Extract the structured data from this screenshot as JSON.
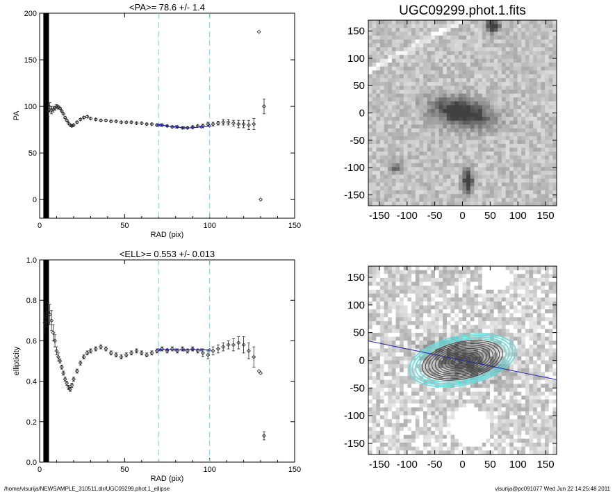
{
  "footer": {
    "left": "/home/visurija/NEWSAMPLE_310511.dir/UGC09299.phot.1_ellipse",
    "right": "visurija@pc091077  Wed Jun 22 14:25:48 2011"
  },
  "colors": {
    "points": "#222222",
    "fit": "#2222aa",
    "marker": "#66dddd",
    "axis": "#000000"
  },
  "chart_data": [
    {
      "type": "scatter",
      "title": "<PA>=  78.6 +/-   1.4",
      "xlabel": "RAD (pix)",
      "ylabel": "PA",
      "xlim": [
        0,
        150
      ],
      "ylim": [
        -20,
        200
      ],
      "xticks": [
        "0",
        "50",
        "100",
        "150"
      ],
      "yticks": [
        "0",
        "50",
        "100",
        "150",
        "200"
      ],
      "ytick_values": [
        0,
        50,
        100,
        150,
        200
      ],
      "reference_lines_x": [
        70,
        100
      ],
      "series": [
        {
          "x": [
            5,
            6,
            7,
            8,
            9,
            10,
            11,
            12,
            13,
            14,
            15,
            16,
            17,
            18,
            19,
            20,
            22,
            24,
            26,
            28,
            30,
            33,
            36,
            39,
            42,
            45,
            48,
            51,
            54,
            57,
            60,
            63,
            66,
            69,
            72,
            75,
            78,
            81,
            84,
            87,
            90,
            93,
            96,
            99,
            102,
            105,
            108,
            111,
            114,
            117,
            120,
            123,
            126,
            129,
            130,
            132
          ],
          "y": [
            95,
            99,
            96,
            97,
            98,
            100,
            99,
            98,
            95,
            92,
            88,
            85,
            82,
            80,
            79,
            80,
            83,
            86,
            88,
            89,
            87,
            86,
            85,
            85,
            84,
            84,
            83,
            83,
            83,
            82,
            82,
            81,
            81,
            80,
            80,
            79,
            78,
            78,
            77,
            77,
            78,
            79,
            79,
            81,
            81,
            82,
            83,
            83,
            82,
            81,
            81,
            80,
            81,
            180,
            0,
            100
          ],
          "err": [
            6,
            5,
            4,
            3,
            2,
            2,
            2,
            1,
            1,
            1,
            1,
            1,
            1,
            1,
            1,
            1,
            1,
            1,
            1,
            1,
            1,
            1,
            1,
            1,
            1,
            1,
            1,
            1,
            1,
            1,
            1,
            1,
            1,
            1,
            1,
            1,
            1,
            1,
            1,
            1,
            1,
            1,
            2,
            2,
            2,
            2,
            3,
            3,
            3,
            4,
            4,
            5,
            6,
            0,
            0,
            8
          ]
        }
      ],
      "fit": {
        "x": [
          70,
          71,
          75,
          80,
          85,
          90,
          95,
          100
        ],
        "y": [
          80,
          80,
          79,
          78,
          77,
          77,
          78,
          79
        ]
      }
    },
    {
      "type": "scatter",
      "title": "<ELL>= 0.553 +/-  0.013",
      "xlabel": "RAD (pix)",
      "ylabel": "ellipticity",
      "xlim": [
        0,
        150
      ],
      "ylim": [
        0,
        1
      ],
      "xticks": [
        "0",
        "50",
        "100",
        "150"
      ],
      "yticks": [
        "0.0",
        "0.2",
        "0.4",
        "0.6",
        "0.8",
        "1.0"
      ],
      "ytick_values": [
        0,
        0.2,
        0.4,
        0.6,
        0.8,
        1.0
      ],
      "reference_lines_x": [
        70,
        100
      ],
      "series": [
        {
          "x": [
            3,
            4,
            5,
            6,
            7,
            8,
            9,
            10,
            11,
            12,
            13,
            14,
            15,
            16,
            17,
            18,
            19,
            20,
            22,
            24,
            26,
            28,
            30,
            33,
            36,
            39,
            42,
            45,
            48,
            51,
            54,
            57,
            60,
            63,
            66,
            69,
            72,
            75,
            78,
            81,
            84,
            87,
            90,
            93,
            96,
            99,
            102,
            105,
            108,
            111,
            114,
            117,
            120,
            123,
            126,
            129,
            130,
            132
          ],
          "y": [
            0.69,
            0.72,
            0.74,
            0.73,
            0.7,
            0.64,
            0.6,
            0.55,
            0.52,
            0.5,
            0.47,
            0.44,
            0.41,
            0.39,
            0.37,
            0.36,
            0.38,
            0.41,
            0.45,
            0.49,
            0.52,
            0.54,
            0.55,
            0.56,
            0.57,
            0.56,
            0.54,
            0.53,
            0.52,
            0.53,
            0.54,
            0.55,
            0.54,
            0.53,
            0.54,
            0.55,
            0.56,
            0.55,
            0.56,
            0.55,
            0.56,
            0.55,
            0.56,
            0.55,
            0.54,
            0.53,
            0.55,
            0.56,
            0.57,
            0.58,
            0.58,
            0.59,
            0.58,
            0.55,
            0.52,
            0.45,
            0.44,
            0.13
          ],
          "err": [
            0.05,
            0.05,
            0.05,
            0.05,
            0.05,
            0.04,
            0.03,
            0.02,
            0.02,
            0.01,
            0.01,
            0.01,
            0.01,
            0.01,
            0.01,
            0.01,
            0.01,
            0.01,
            0.01,
            0.01,
            0.01,
            0.01,
            0.01,
            0.01,
            0.01,
            0.01,
            0.01,
            0.01,
            0.01,
            0.01,
            0.01,
            0.01,
            0.01,
            0.01,
            0.01,
            0.01,
            0.01,
            0.01,
            0.01,
            0.01,
            0.01,
            0.01,
            0.01,
            0.01,
            0.02,
            0.02,
            0.02,
            0.02,
            0.02,
            0.02,
            0.03,
            0.03,
            0.04,
            0.04,
            0.05,
            0,
            0,
            0.02
          ]
        }
      ],
      "fit": {
        "x": [
          70,
          71,
          75,
          80,
          85,
          90,
          95,
          100
        ],
        "y": [
          0.555,
          0.555,
          0.556,
          0.555,
          0.555,
          0.556,
          0.555,
          0.555
        ]
      }
    },
    {
      "type": "heatmap",
      "title": "UGC09299.phot.1.fits",
      "xlim": [
        -170,
        170
      ],
      "ylim": [
        -170,
        170
      ],
      "xticks": [
        "-150",
        "-100",
        "-50",
        "0",
        "50",
        "100",
        "150"
      ],
      "yticks": [
        "-150",
        "-100",
        "-50",
        "0",
        "50",
        "100",
        "150"
      ],
      "tick_values": [
        -150,
        -100,
        -50,
        0,
        50,
        100,
        150
      ],
      "sources": [
        {
          "x": 0,
          "y": 0,
          "peak": 0.85
        },
        {
          "x": 10,
          "y": -125,
          "peak": 0.9
        },
        {
          "x": 55,
          "y": 160,
          "peak": 1.0
        },
        {
          "x": -120,
          "y": -100,
          "peak": 0.5
        }
      ]
    },
    {
      "type": "heatmap",
      "title": "",
      "xlim": [
        -170,
        170
      ],
      "ylim": [
        -170,
        170
      ],
      "xticks": [
        "-150",
        "-100",
        "-50",
        "0",
        "50",
        "100",
        "150"
      ],
      "yticks": [
        "-150",
        "-100",
        "-50",
        "0",
        "50",
        "100",
        "150"
      ],
      "tick_values": [
        -150,
        -100,
        -50,
        0,
        50,
        100,
        150
      ],
      "pa_line": {
        "x": [
          -170,
          170
        ],
        "y": [
          35,
          -35
        ]
      },
      "isophote_radii": [
        8,
        14,
        20,
        26,
        32,
        38,
        44,
        50,
        56,
        62,
        68,
        74,
        80,
        86,
        92,
        98
      ],
      "isophote_pa_deg": 12,
      "isophote_axis_ratio": 0.45
    }
  ]
}
